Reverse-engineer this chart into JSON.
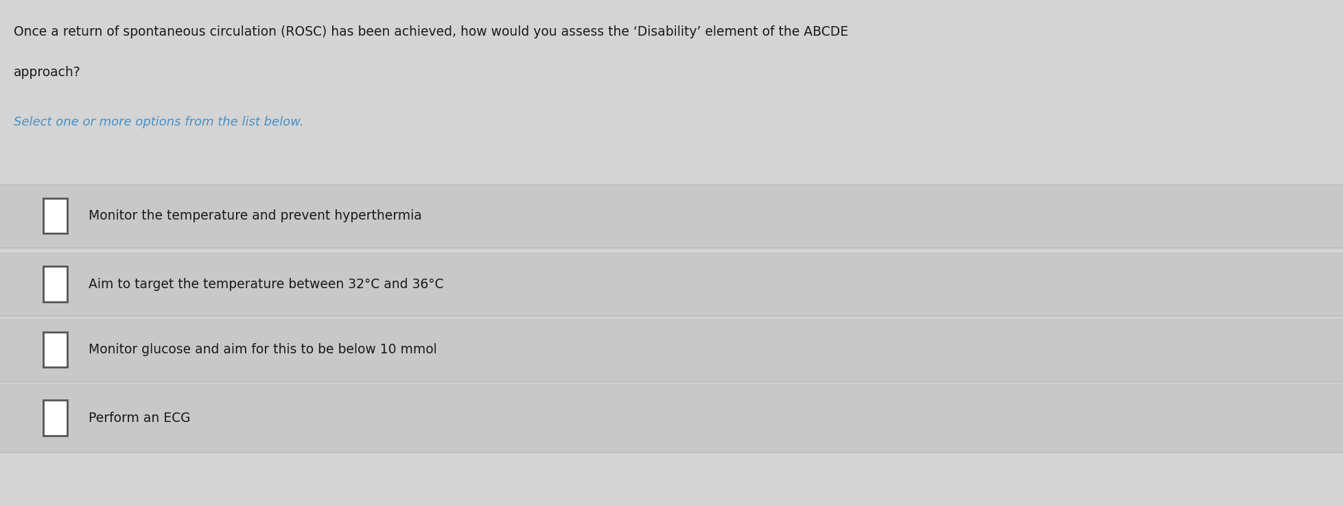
{
  "question_line1": "Once a return of spontaneous circulation (ROSC) has been achieved, how would you assess the ‘Disability’ element of the ABCDE",
  "question_line2": "approach?",
  "instruction": "Select one or more options from the list below.",
  "options": [
    "Monitor the temperature and prevent hyperthermia",
    "Aim to target the temperature between 32°C and 36°C",
    "Monitor glucose and aim for this to be below 10 mmol",
    "Perform an ECG"
  ],
  "bg_color": "#d4d4d4",
  "option_bg_color": "#c8c8c8",
  "question_color": "#1a1a1a",
  "instruction_color": "#4a90c4",
  "option_text_color": "#1a1a1a",
  "checkbox_color": "#555555",
  "separator_color": "#b8b8b8",
  "fig_width": 19.58,
  "fig_height": 7.36
}
